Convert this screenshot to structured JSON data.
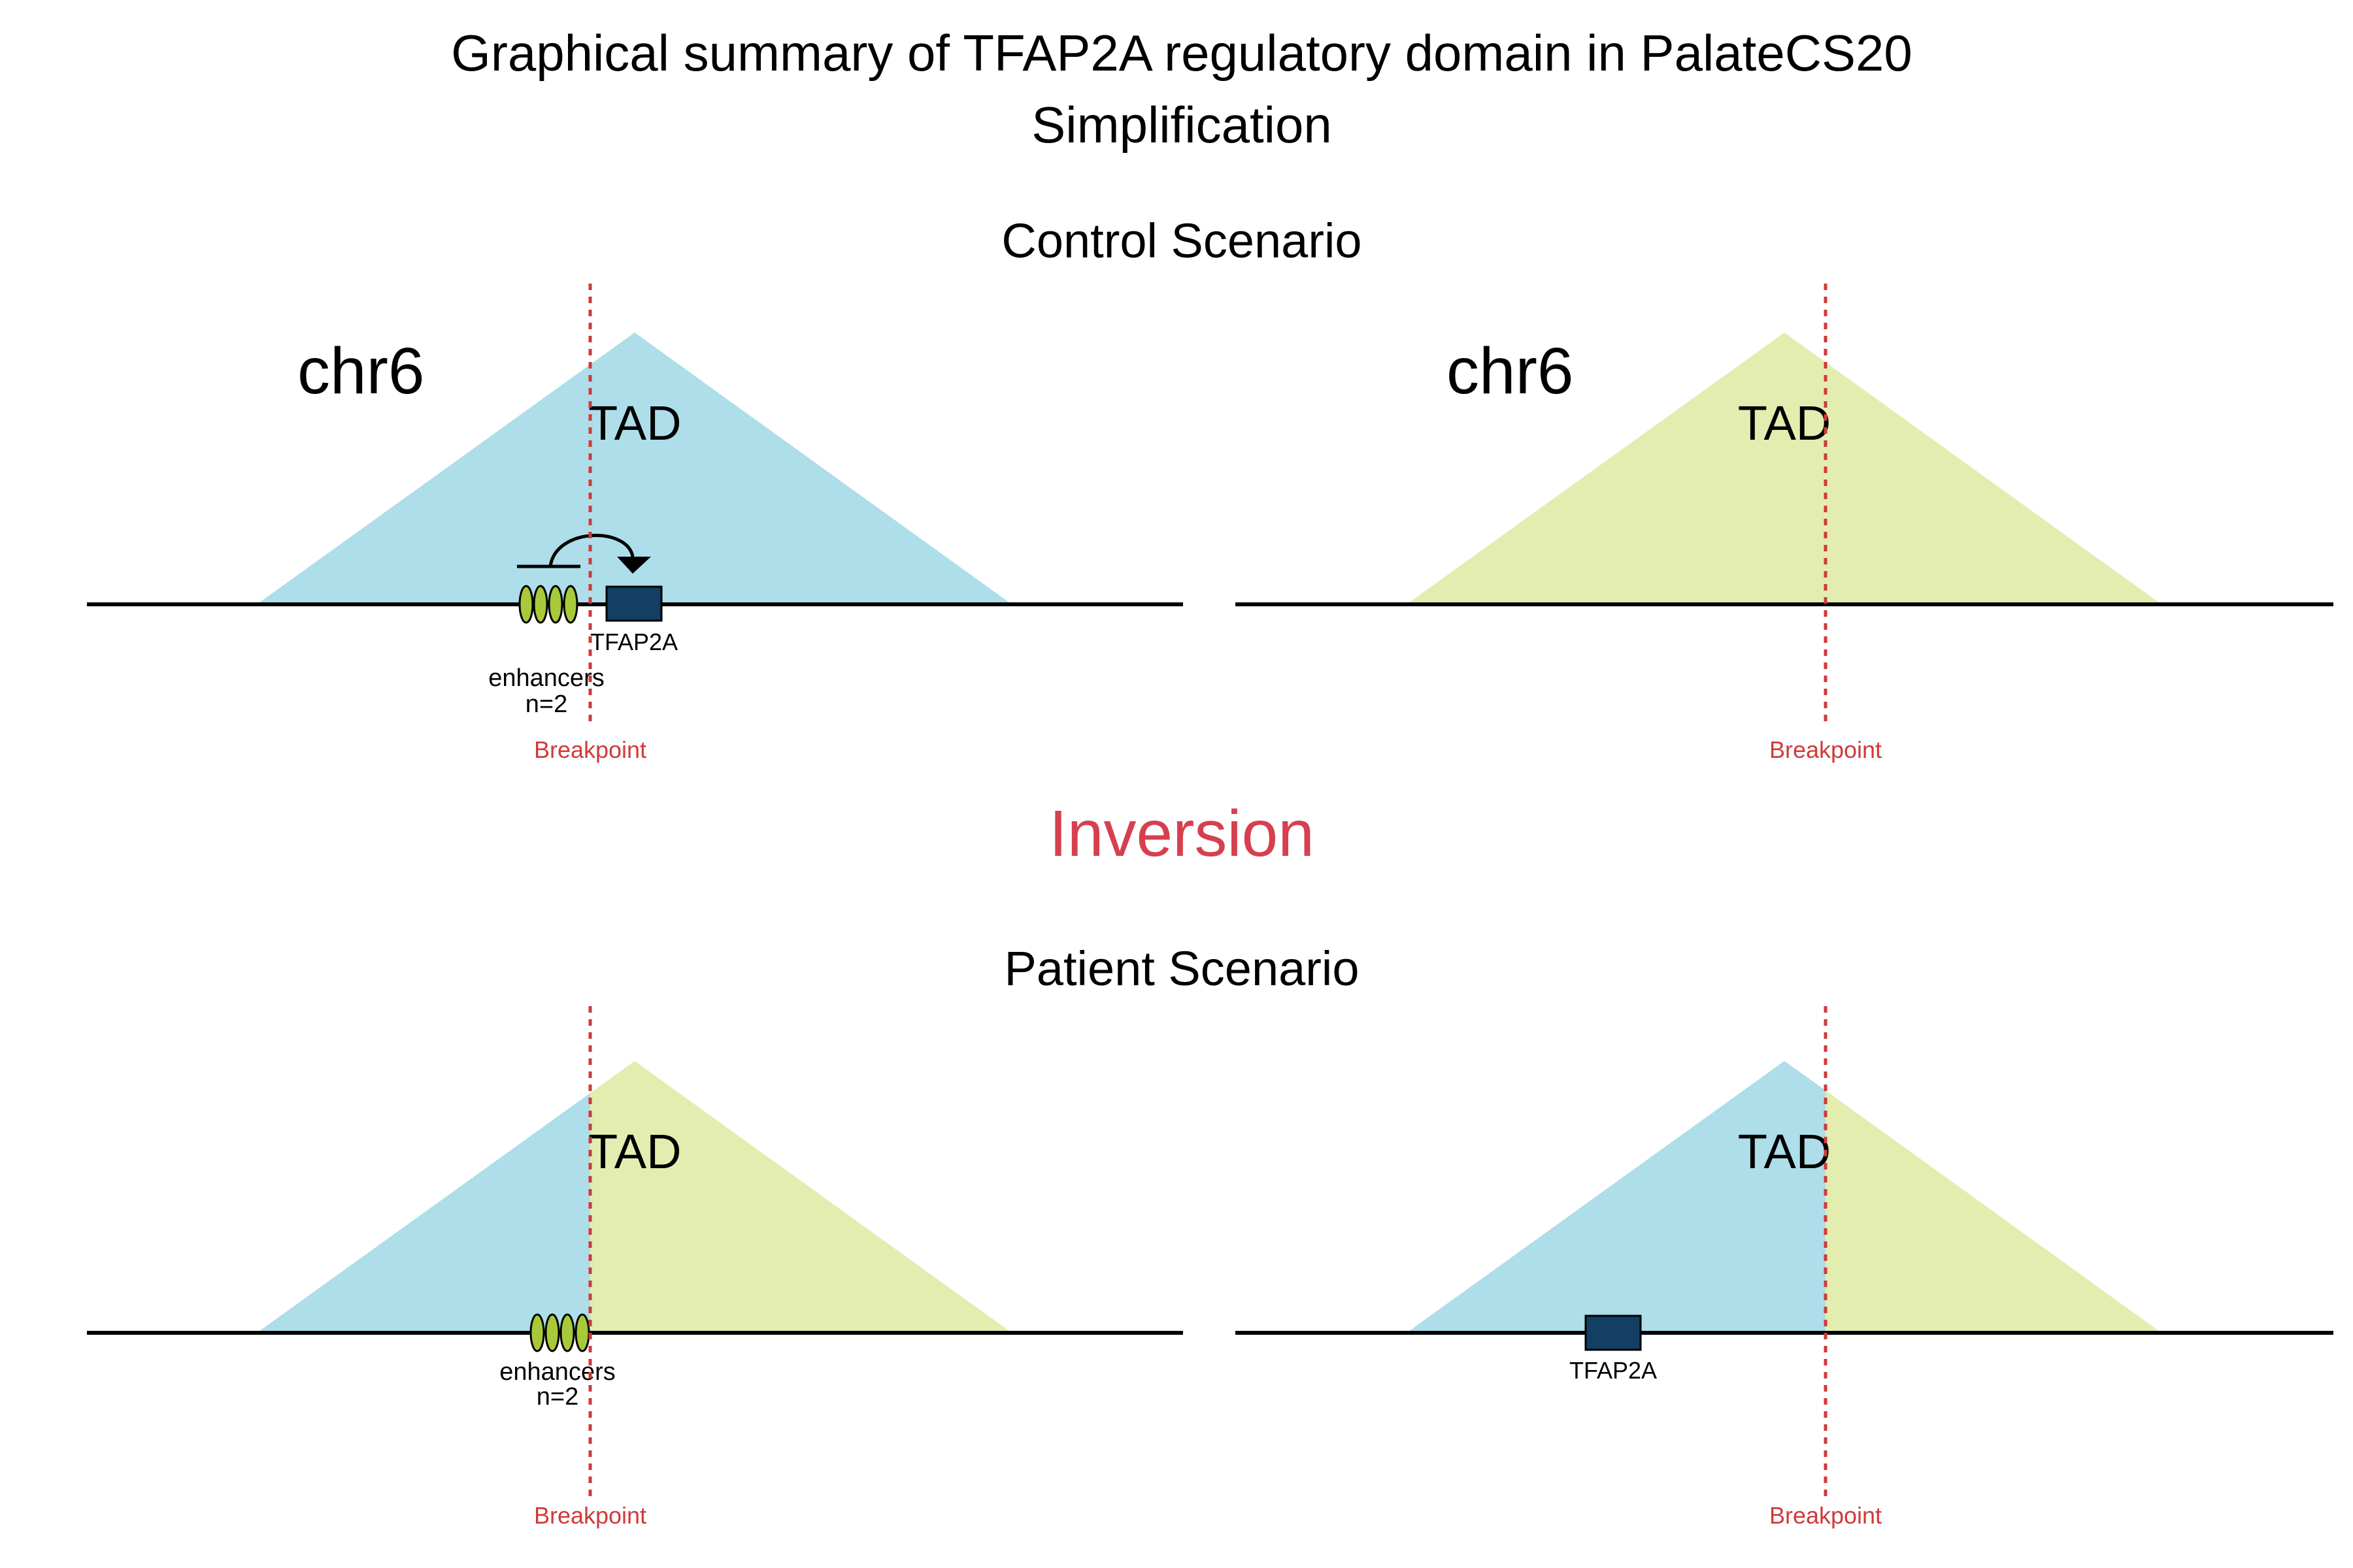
{
  "title": {
    "line1": "Graphical summary of TFAP2A regulatory domain in PalateCS20",
    "line2": "Simplification"
  },
  "colors": {
    "tad_blue": "#ADDEEA",
    "tad_green": "#E3EDB0",
    "breakpoint_red": "#D03A3A",
    "inversion_red": "#D6404E",
    "gene_fill": "#123F63",
    "enhancer_fill": "#A8C93A",
    "chromosome_line": "#000000"
  },
  "inversion_label": "Inversion",
  "control": {
    "heading": "Control Scenario",
    "left": {
      "chromosome": "chr6",
      "tad_label": "TAD",
      "tad_colors": [
        "tad_blue"
      ],
      "gene_label": "TFAP2A",
      "enhancer_label": "enhancers",
      "enhancer_count": "n=2",
      "enhancer_ovals": 4,
      "has_regulation_arrow": true,
      "breakpoint_label": "Breakpoint"
    },
    "right": {
      "chromosome": "chr6",
      "tad_label": "TAD",
      "tad_colors": [
        "tad_green"
      ],
      "breakpoint_label": "Breakpoint"
    }
  },
  "patient": {
    "heading": "Patient Scenario",
    "left": {
      "tad_label": "TAD",
      "tad_colors": [
        "tad_blue",
        "tad_green"
      ],
      "enhancer_label": "enhancers",
      "enhancer_count": "n=2",
      "enhancer_ovals": 4,
      "breakpoint_label": "Breakpoint"
    },
    "right": {
      "tad_label": "TAD",
      "tad_colors": [
        "tad_blue",
        "tad_green"
      ],
      "gene_label": "TFAP2A",
      "breakpoint_label": "Breakpoint"
    }
  }
}
